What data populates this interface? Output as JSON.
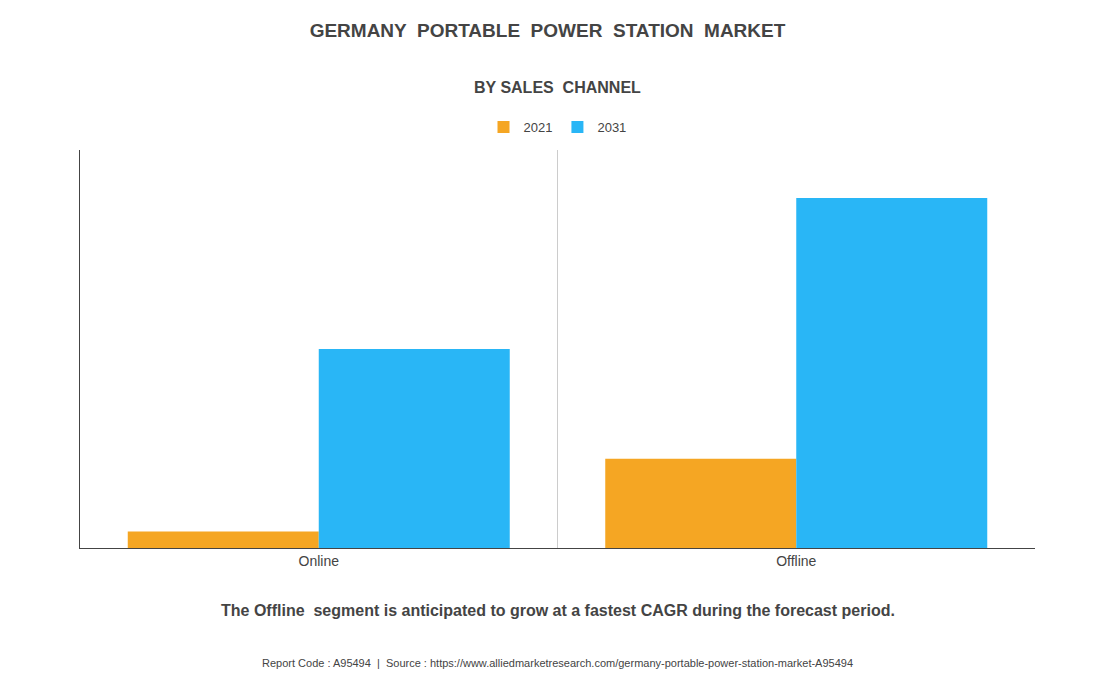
{
  "chart_data": {
    "type": "bar",
    "title": "GERMANY  PORTABLE  POWER  STATION  MARKET",
    "subtitle": "BY SALES  CHANNEL",
    "annotation": "The Offline  segment is anticipated to grow at a fastest CAGR during the forecast period.",
    "footer": "Report Code : A95494  |  Source : https://www.alliedmarketresearch.com/germany-portable-power-station-market-A95494",
    "categories": [
      "Online",
      "Offline"
    ],
    "series": [
      {
        "name": "2021",
        "color": "#F5A623",
        "values": [
          0.012,
          0.065
        ]
      },
      {
        "name": "2031",
        "color": "#29B6F6",
        "values": [
          0.145,
          0.255
        ]
      }
    ],
    "ylim": [
      0,
      0.29
    ],
    "yticks": [],
    "grid": false,
    "legend": "top",
    "tick_labels": "x"
  }
}
